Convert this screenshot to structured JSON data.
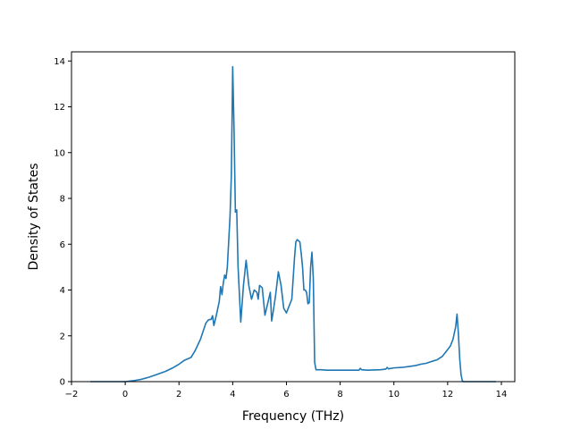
{
  "chart_data": {
    "type": "line",
    "title": "",
    "xlabel": "Frequency (THz)",
    "ylabel": "Density of States",
    "xlim": [
      -2,
      14.5
    ],
    "ylim": [
      0,
      14.4
    ],
    "xticks": [
      -2,
      0,
      2,
      4,
      6,
      8,
      10,
      12,
      14
    ],
    "yticks": [
      0,
      2,
      4,
      6,
      8,
      10,
      12,
      14
    ],
    "grid": false,
    "legend": "none",
    "series": [
      {
        "color": "#1f77b4",
        "x": [
          -1.3,
          -1.0,
          -0.5,
          0.0,
          0.3,
          0.6,
          0.9,
          1.2,
          1.5,
          1.8,
          2.0,
          2.2,
          2.3,
          2.45,
          2.6,
          2.8,
          3.0,
          3.1,
          3.2,
          3.25,
          3.3,
          3.4,
          3.5,
          3.55,
          3.6,
          3.65,
          3.7,
          3.75,
          3.8,
          3.9,
          3.95,
          4.0,
          4.05,
          4.1,
          4.15,
          4.2,
          4.3,
          4.4,
          4.5,
          4.6,
          4.7,
          4.8,
          4.9,
          4.95,
          5.0,
          5.1,
          5.2,
          5.3,
          5.4,
          5.45,
          5.5,
          5.6,
          5.7,
          5.8,
          5.9,
          6.0,
          6.1,
          6.2,
          6.3,
          6.35,
          6.4,
          6.5,
          6.55,
          6.6,
          6.65,
          6.7,
          6.75,
          6.8,
          6.85,
          6.9,
          6.95,
          7.0,
          7.05,
          7.1,
          7.2,
          7.3,
          7.5,
          8.0,
          8.5,
          8.7,
          8.75,
          8.8,
          9.0,
          9.5,
          9.7,
          9.75,
          9.8,
          10.0,
          10.3,
          10.5,
          10.8,
          11.0,
          11.2,
          11.4,
          11.6,
          11.8,
          11.9,
          12.0,
          12.1,
          12.2,
          12.3,
          12.35,
          12.4,
          12.45,
          12.5,
          12.55,
          12.6,
          12.7,
          13.0,
          13.5,
          13.8
        ],
        "y": [
          0,
          0,
          0,
          0,
          0.04,
          0.1,
          0.2,
          0.32,
          0.45,
          0.62,
          0.76,
          0.93,
          0.98,
          1.06,
          1.35,
          1.85,
          2.55,
          2.7,
          2.72,
          2.88,
          2.45,
          2.95,
          3.5,
          4.15,
          3.8,
          4.3,
          4.65,
          4.5,
          5.0,
          7.2,
          9.0,
          13.75,
          11.0,
          7.4,
          7.5,
          5.0,
          2.6,
          4.2,
          5.3,
          4.2,
          3.6,
          4.0,
          3.9,
          3.6,
          4.2,
          4.1,
          2.9,
          3.4,
          3.9,
          2.65,
          3.0,
          3.8,
          4.8,
          4.2,
          3.2,
          3.0,
          3.3,
          3.6,
          5.4,
          6.1,
          6.2,
          6.1,
          5.6,
          5.0,
          4.0,
          4.0,
          3.9,
          3.4,
          3.45,
          5.0,
          5.65,
          4.5,
          0.85,
          0.52,
          0.52,
          0.52,
          0.5,
          0.5,
          0.5,
          0.5,
          0.58,
          0.52,
          0.5,
          0.52,
          0.55,
          0.62,
          0.56,
          0.6,
          0.62,
          0.65,
          0.7,
          0.76,
          0.8,
          0.88,
          0.95,
          1.1,
          1.25,
          1.4,
          1.55,
          1.85,
          2.4,
          2.95,
          2.1,
          1.0,
          0.3,
          0.02,
          0,
          0,
          0,
          0,
          0
        ]
      }
    ]
  }
}
